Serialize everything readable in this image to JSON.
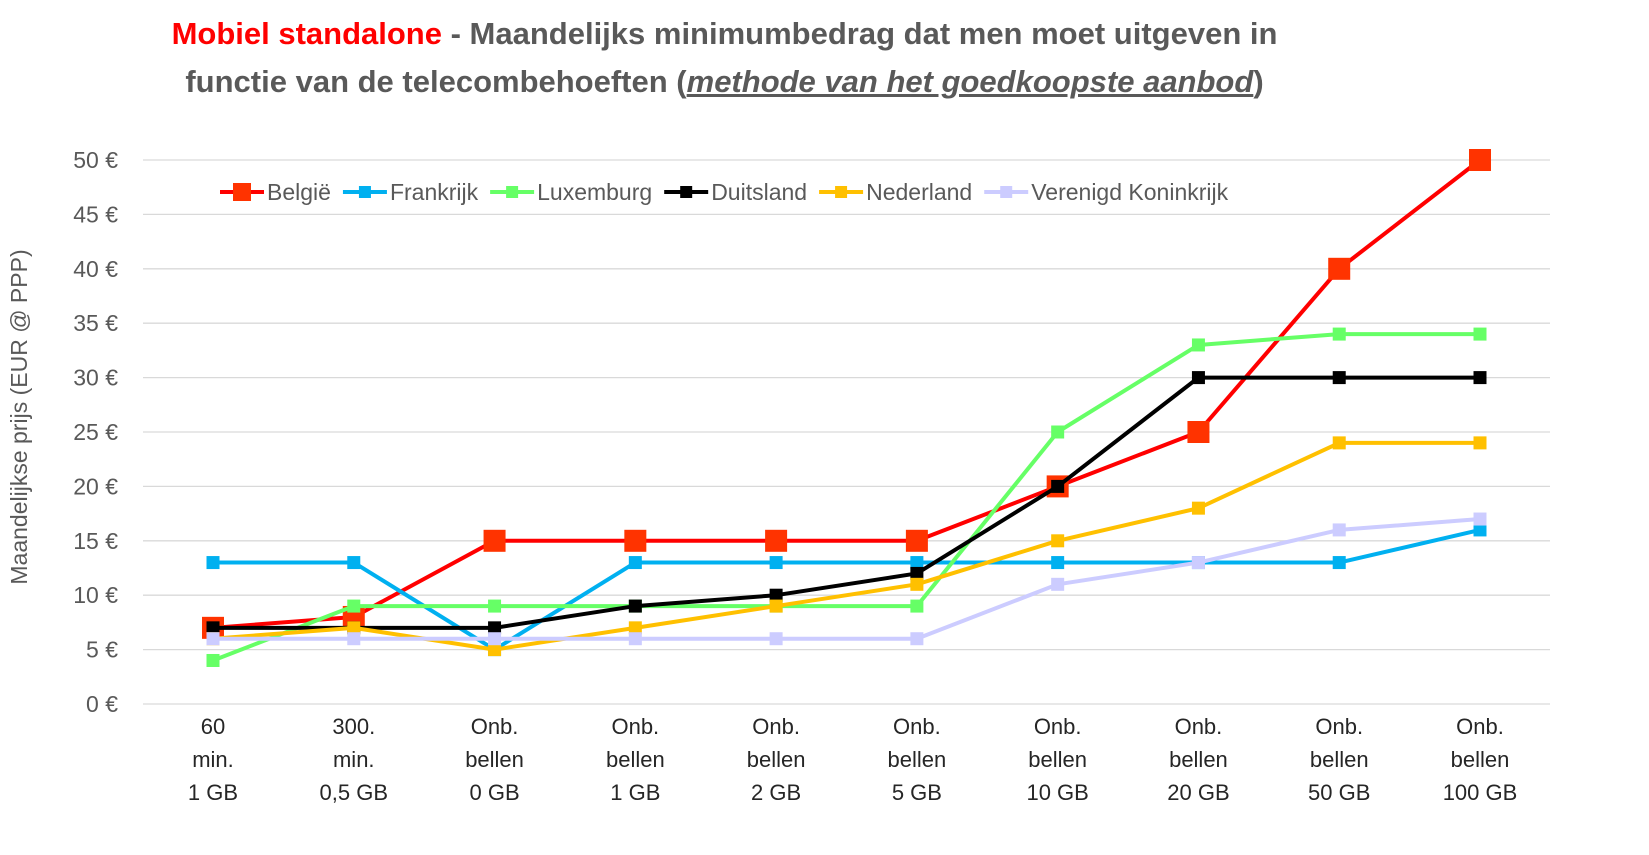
{
  "chart_data": {
    "type": "line",
    "title_highlight": "Mobiel standalone",
    "title_rest": " - Maandelijks minimumbedrag dat men moet uitgeven in",
    "title_line2_start": "functie van de telecombehoeften (",
    "title_line2_italic": "methode van het goedkoopste aanbod",
    "title_line2_end": ")",
    "ylabel": "Maandelijkse prijs (EUR @ PPP)",
    "ylim": [
      0,
      50
    ],
    "yticks": [
      "0 €",
      "5 €",
      "10 €",
      "15 €",
      "20 €",
      "25 €",
      "30 €",
      "35 €",
      "40 €",
      "45 €",
      "50 €"
    ],
    "categories": [
      [
        "60",
        "min.",
        "1 GB"
      ],
      [
        "300.",
        "min.",
        "0,5 GB"
      ],
      [
        "Onb.",
        "bellen",
        "0 GB"
      ],
      [
        "Onb.",
        "bellen",
        "1 GB"
      ],
      [
        "Onb.",
        "bellen",
        "2 GB"
      ],
      [
        "Onb.",
        "bellen",
        "5 GB"
      ],
      [
        "Onb.",
        "bellen",
        "10 GB"
      ],
      [
        "Onb.",
        "bellen",
        "20 GB"
      ],
      [
        "Onb.",
        "bellen",
        "50 GB"
      ],
      [
        "Onb.",
        "bellen",
        "100 GB"
      ]
    ],
    "legend_position": "top",
    "grid": true,
    "series": [
      {
        "name": "België",
        "color": "#ff0000",
        "marker_color": "#ff3300",
        "values": [
          7,
          8,
          15,
          15,
          15,
          15,
          20,
          25,
          40,
          50
        ],
        "big_marker": true
      },
      {
        "name": "Frankrijk",
        "color": "#00b0f0",
        "marker_color": "#00b0f0",
        "values": [
          13,
          13,
          5,
          13,
          13,
          13,
          13,
          13,
          13,
          16
        ],
        "big_marker": false
      },
      {
        "name": "Luxemburg",
        "color": "#66ff66",
        "marker_color": "#66ff66",
        "values": [
          4,
          9,
          9,
          9,
          9,
          9,
          25,
          33,
          34,
          34
        ],
        "big_marker": false
      },
      {
        "name": "Duitsland",
        "color": "#000000",
        "marker_color": "#000000",
        "values": [
          7,
          7,
          7,
          9,
          10,
          12,
          20,
          30,
          30,
          30
        ],
        "big_marker": false
      },
      {
        "name": "Nederland",
        "color": "#ffc000",
        "marker_color": "#ffc000",
        "values": [
          6,
          7,
          5,
          7,
          9,
          11,
          15,
          18,
          24,
          24
        ],
        "big_marker": false
      },
      {
        "name": "Verenigd Koninkrijk",
        "color": "#ccccff",
        "marker_color": "#ccccff",
        "values": [
          6,
          6,
          6,
          6,
          6,
          6,
          11,
          13,
          16,
          17
        ],
        "big_marker": false
      }
    ]
  }
}
